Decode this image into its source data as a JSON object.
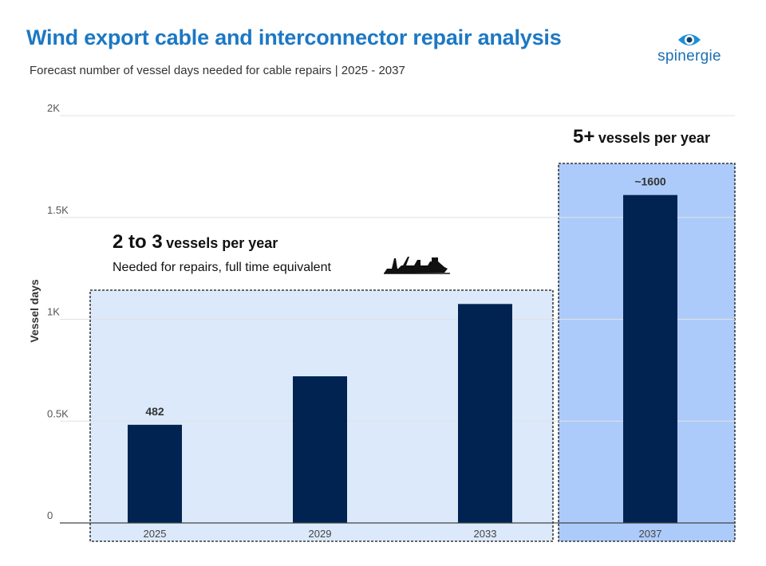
{
  "header": {
    "title": "Wind export cable and interconnector repair analysis",
    "subtitle": "Forecast number of vessel days needed for cable repairs | 2025 - 2037"
  },
  "logo": {
    "text": "spinergie"
  },
  "annotations": {
    "range_big": "2 to 3",
    "range_rest": "vessels per year",
    "range_note": "Needed for repairs,  full time equivalent",
    "future_big": "5+",
    "future_rest": "vessels per year"
  },
  "colors": {
    "bar": "#002352",
    "title": "#1c78c4",
    "region_current": "#dbe9fb",
    "region_future": "#adcbfa"
  },
  "chart_data": {
    "type": "bar",
    "categories": [
      "2025",
      "2029",
      "2033",
      "2037"
    ],
    "values": [
      482,
      720,
      1075,
      1610
    ],
    "data_labels": [
      "482",
      "",
      "",
      "~1600"
    ],
    "ylabel": "Vessel days",
    "ylim": [
      0,
      2000
    ],
    "yticks": [
      0,
      500,
      1000,
      1500,
      2000
    ],
    "ytick_labels": [
      "0",
      "0.5K",
      "1K",
      "1.5K",
      "2K"
    ],
    "grid": true,
    "highlight_regions": [
      {
        "from": "2025",
        "to": "2033",
        "style": "light"
      },
      {
        "from": "2037",
        "to": "2037",
        "style": "strong"
      }
    ]
  }
}
